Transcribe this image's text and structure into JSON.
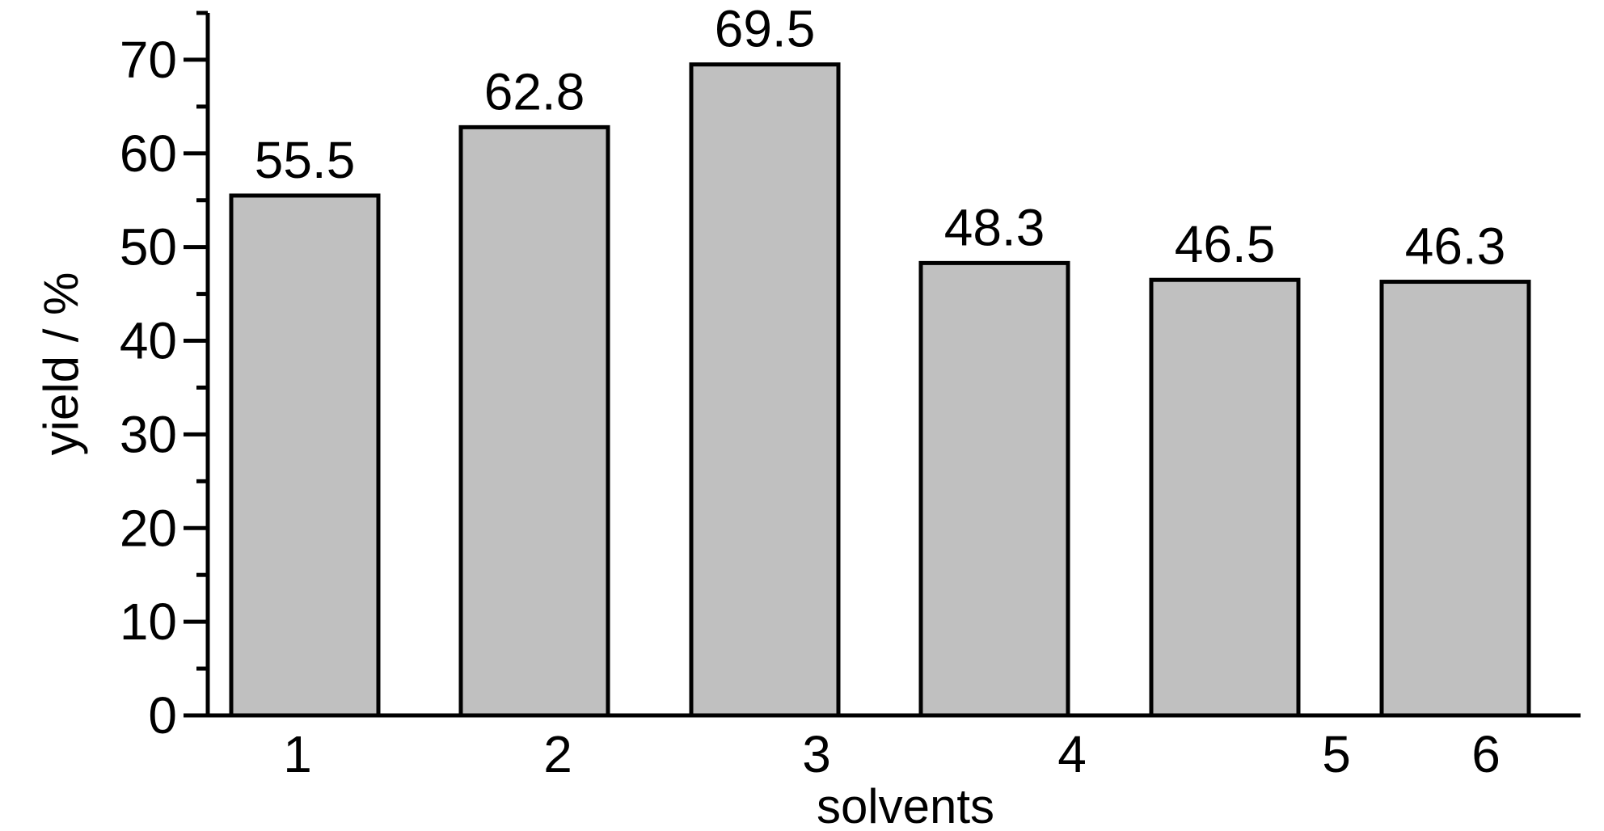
{
  "chart_data": {
    "type": "bar",
    "categories": [
      "1",
      "2",
      "3",
      "4",
      "5",
      "6"
    ],
    "values": [
      55.5,
      62.8,
      69.5,
      48.3,
      46.5,
      46.3
    ],
    "data_labels": [
      "55.5",
      "62.8",
      "69.5",
      "48.3",
      "46.5",
      "46.3"
    ],
    "title": "",
    "xlabel": "solvents",
    "ylabel": "yield / %",
    "ylim": [
      0,
      75
    ],
    "yticks": [
      0,
      10,
      20,
      30,
      40,
      50,
      60,
      70
    ],
    "y_minor_step": 5,
    "grid": false,
    "legend": "none",
    "colors": {
      "bar_fill": "#c0c0c0",
      "bar_stroke": "#000000",
      "axis": "#000000",
      "background": "#ffffff"
    }
  }
}
